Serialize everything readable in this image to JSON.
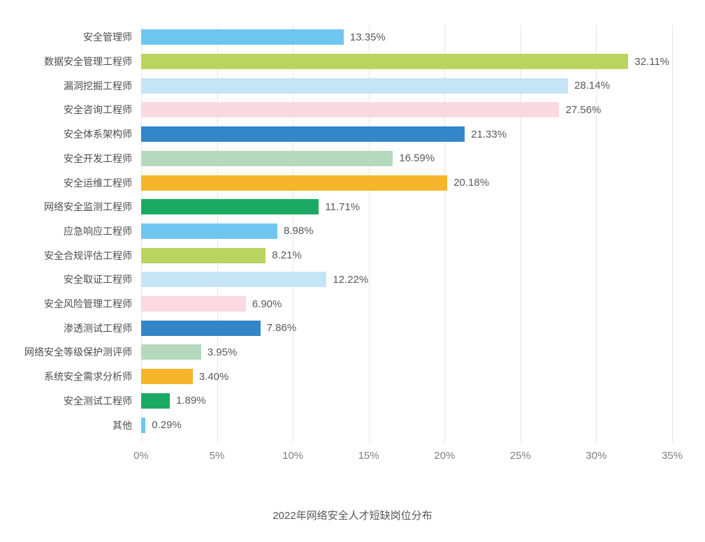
{
  "title": "2022年网络安全人才短缺岗位分布",
  "colors": {
    "background": "#ffffff",
    "gridline": "#e5e5e5",
    "category_text": "#4d4d4d",
    "value_text": "#595959",
    "axis_text": "#7f7f7f",
    "title_text": "#595959",
    "palette_cycle": [
      "#6EC6F0",
      "#BAD45F",
      "#C5E4F5",
      "#FADAE0",
      "#3386C7",
      "#B5D9BD",
      "#F7B52C",
      "#1BAA64"
    ]
  },
  "chart_data": {
    "type": "bar",
    "orientation": "horizontal",
    "title": "2022年网络安全人才短缺岗位分布",
    "xlabel": "",
    "ylabel": "",
    "xlim": [
      0,
      35
    ],
    "grid": "vertical-only",
    "legend": "none",
    "x_ticks": [
      "0%",
      "5%",
      "10%",
      "15%",
      "20%",
      "25%",
      "30%",
      "35%"
    ],
    "categories": [
      "安全管理师",
      "数据安全管理工程师",
      "漏洞挖掘工程师",
      "安全咨询工程师",
      "安全体系架构师",
      "安全开发工程师",
      "安全运维工程师",
      "网络安全监测工程师",
      "应急响应工程师",
      "安全合规评估工程师",
      "安全取证工程师",
      "安全风险管理工程师",
      "渗透测试工程师",
      "网络安全等级保护测评师",
      "系统安全需求分析师",
      "安全测试工程师",
      "其他"
    ],
    "values": [
      13.35,
      32.11,
      28.14,
      27.56,
      21.33,
      16.59,
      20.18,
      11.71,
      8.98,
      8.21,
      12.22,
      6.9,
      7.86,
      3.95,
      3.4,
      1.89,
      0.29
    ],
    "value_labels": [
      "13.35%",
      "32.11%",
      "28.14%",
      "27.56%",
      "21.33%",
      "16.59%",
      "20.18%",
      "11.71%",
      "8.98%",
      "8.21%",
      "12.22%",
      "6.90%",
      "7.86%",
      "3.95%",
      "3.40%",
      "1.89%",
      "0.29%"
    ],
    "bar_colors": [
      "#6EC6F0",
      "#BAD45F",
      "#C5E4F5",
      "#FADAE0",
      "#3386C7",
      "#B5D9BD",
      "#F7B52C",
      "#1BAA64",
      "#6EC6F0",
      "#BAD45F",
      "#C5E4F5",
      "#FADAE0",
      "#3386C7",
      "#B5D9BD",
      "#F7B52C",
      "#1BAA64",
      "#6EC6F0"
    ]
  }
}
